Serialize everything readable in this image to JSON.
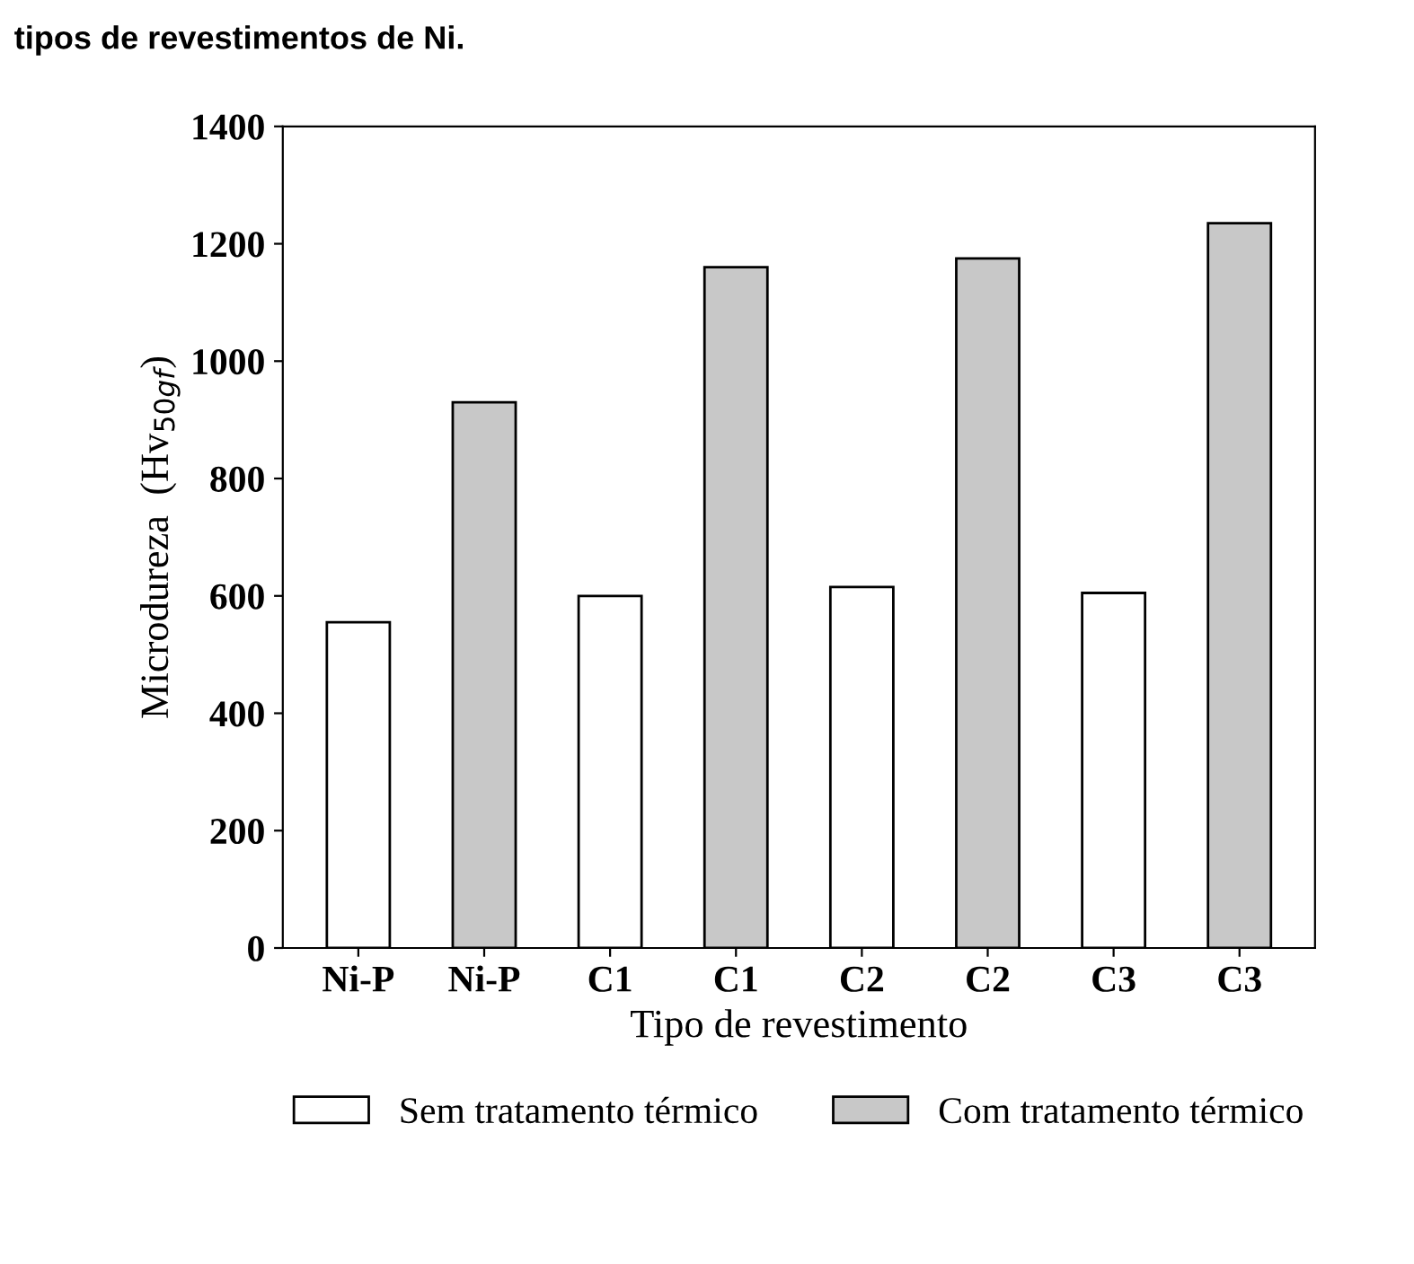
{
  "chart_data": {
    "type": "bar",
    "title": "tipos de revestimentos de Ni.",
    "categories": [
      "Ni-P",
      "Ni-P",
      "C1",
      "C1",
      "C2",
      "C2",
      "C3",
      "C3"
    ],
    "series": [
      {
        "name": "Sem tratamento térmico",
        "color": "#ffffff",
        "values": [
          555,
          null,
          600,
          null,
          615,
          null,
          605,
          null
        ]
      },
      {
        "name": "Com tratamento térmico",
        "color": "#c8c8c8",
        "values": [
          null,
          930,
          null,
          1160,
          null,
          1175,
          null,
          1235
        ]
      }
    ],
    "xlabel": "Tipo de revestimento",
    "ylabel": "Microdureza  (Hv$_{50gf}$)",
    "ylim": [
      0,
      1400
    ],
    "yticks": [
      0,
      200,
      400,
      600,
      800,
      1000,
      1200,
      1400
    ],
    "grid": false,
    "legend": "bottom"
  }
}
